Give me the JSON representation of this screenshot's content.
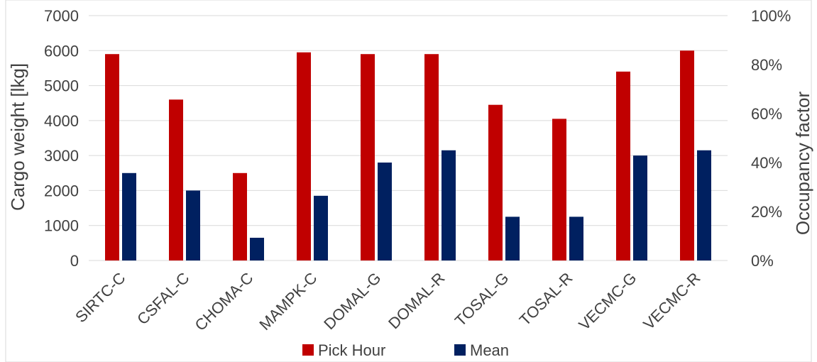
{
  "chart_data": {
    "type": "bar",
    "categories": [
      "SIRTC-C",
      "CSFAL-C",
      "CHOMA-C",
      "MAMPK-C",
      "DOMAL-G",
      "DOMAL-R",
      "TOSAL-G",
      "TOSAL-R",
      "VECMC-G",
      "VECMC-R"
    ],
    "series": [
      {
        "name": "Pick Hour",
        "color": "#C00000",
        "values": [
          5900,
          4600,
          2500,
          5950,
          5900,
          5900,
          4450,
          4050,
          5400,
          6000
        ]
      },
      {
        "name": "Mean",
        "color": "#002060",
        "values": [
          2500,
          2000,
          650,
          1850,
          2800,
          3150,
          1250,
          1250,
          3000,
          3150
        ]
      }
    ],
    "ylabel": "Cargo weight [lkg]",
    "y2label": "Occupancy factor",
    "ylim": [
      0,
      7000
    ],
    "yticks": [
      "0",
      "1000",
      "2000",
      "3000",
      "4000",
      "5000",
      "6000",
      "7000"
    ],
    "y2lim": [
      0,
      1
    ],
    "y2ticks": [
      "0%",
      "20%",
      "40%",
      "60%",
      "80%",
      "100%"
    ],
    "grid": true,
    "legend_position": "bottom"
  }
}
